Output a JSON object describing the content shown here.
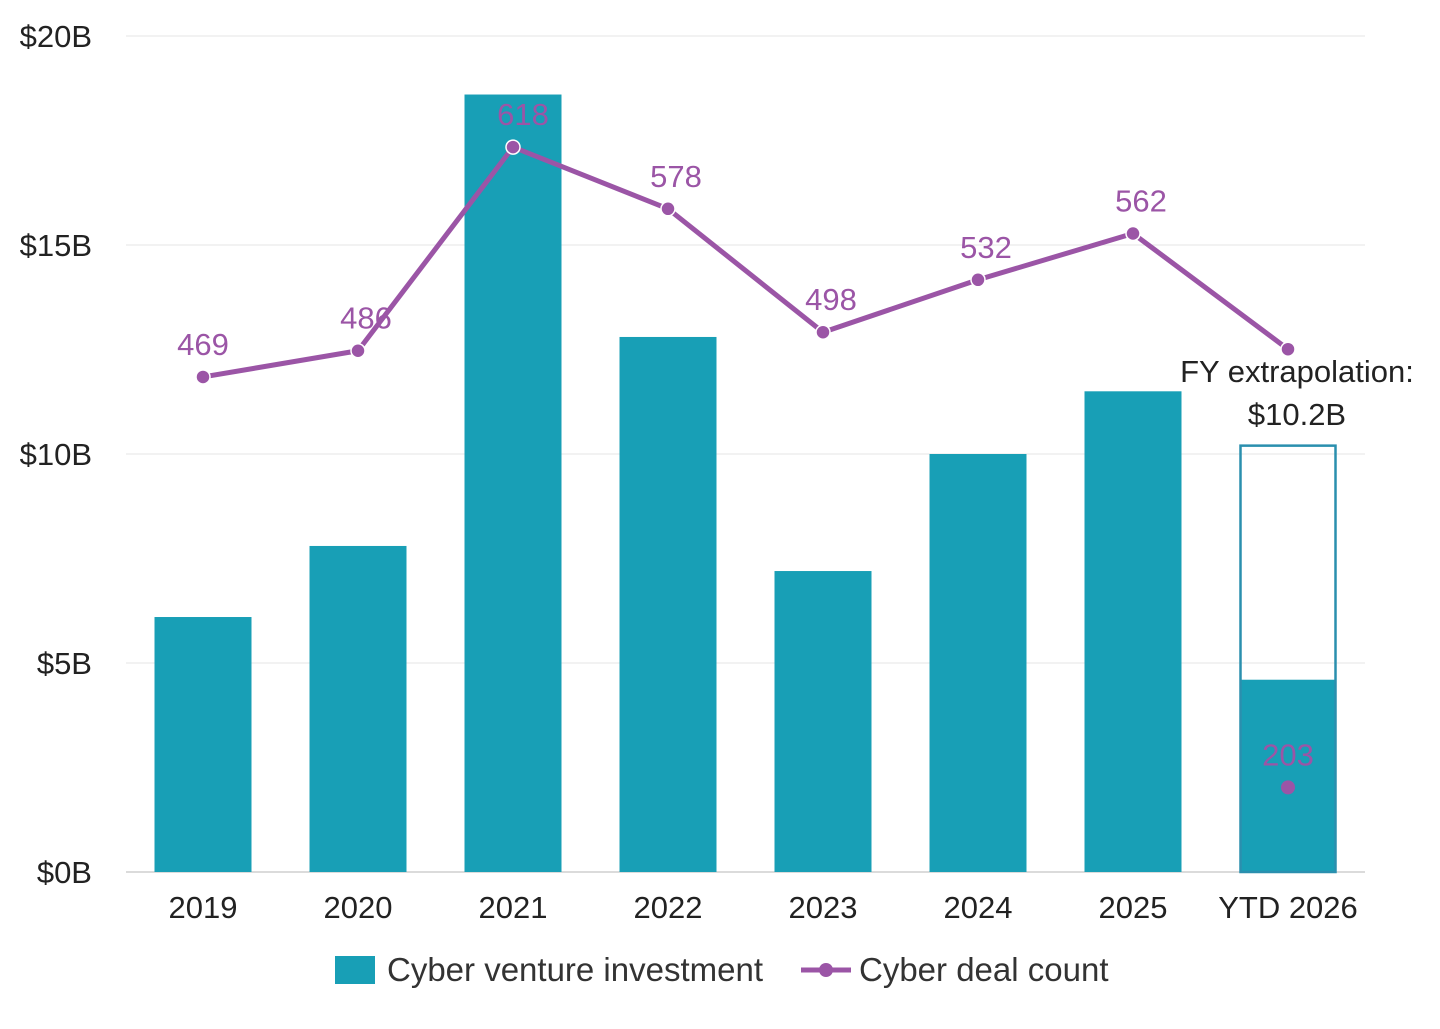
{
  "chart_data": {
    "type": "bar",
    "title": "",
    "xlabel": "",
    "ylabel": "",
    "categories": [
      "2019",
      "2020",
      "2021",
      "2022",
      "2023",
      "2024",
      "2025",
      "YTD 2026"
    ],
    "ylim": [
      0,
      20
    ],
    "yticks": [
      0,
      5,
      10,
      15,
      20
    ],
    "ytick_labels": [
      "$0B",
      "$5B",
      "$10B",
      "$15B",
      "$20B"
    ],
    "grid": true,
    "legend_position": "bottom",
    "series": [
      {
        "name": "Cyber venture investment",
        "type": "bar",
        "color": "#189FB6",
        "values": [
          6.1,
          7.8,
          18.6,
          12.8,
          7.2,
          10.0,
          11.5,
          4.6
        ]
      },
      {
        "name": "Cyber deal count",
        "type": "line",
        "color": "#9B55A6",
        "values": [
          469,
          486,
          618,
          578,
          498,
          532,
          562,
          487
        ],
        "data_labels": [
          "469",
          "486",
          "618",
          "578",
          "498",
          "532",
          "562",
          ""
        ]
      }
    ],
    "extrapolation": {
      "category": "YTD 2026",
      "value": 10.2,
      "label_line1": "FY extrapolation:",
      "label_line2": "$10.2B",
      "ytd_deal_count": 203,
      "ytd_deal_label": "203"
    }
  }
}
